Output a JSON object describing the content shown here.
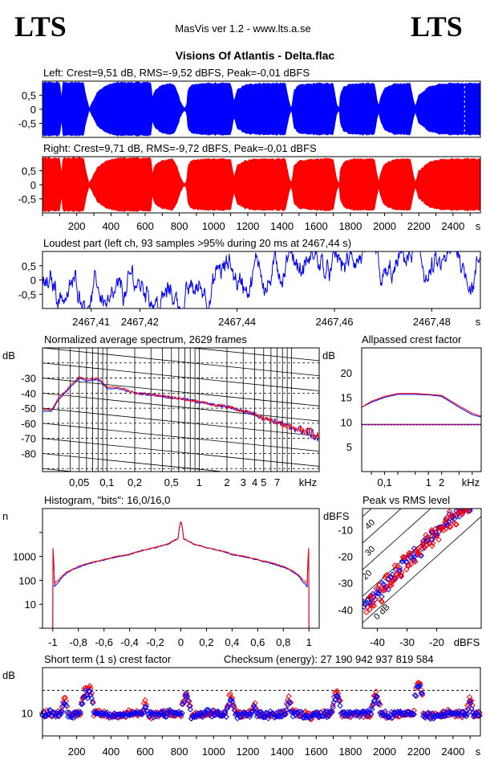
{
  "header": {
    "logo_left": "LTS",
    "logo_right": "LTS",
    "app_title": "MasVis ver 1.2 - www.lts.a.se",
    "file_title": "Visions Of Atlantis - Delta.flac"
  },
  "colors": {
    "left": "#0000ff",
    "right": "#ff0000",
    "axis": "#000000"
  },
  "chart_data": [
    {
      "id": "left-waveform",
      "type": "area",
      "title": "Left: Crest=9,51 dB, RMS=-9,52 dBFS, Peak=-0,01 dBFS",
      "ylim": [
        -1,
        1
      ],
      "yticks": [
        "0,5",
        "0",
        "-0,5"
      ],
      "xlim": [
        0,
        2560
      ],
      "envelope_x": [
        0,
        60,
        100,
        112,
        118,
        150,
        180,
        200,
        215,
        228,
        232,
        240,
        250,
        260,
        272,
        290,
        320,
        360,
        400,
        440,
        480,
        520,
        560,
        600,
        615,
        628,
        636,
        640,
        660,
        700,
        740,
        760,
        775,
        790,
        805,
        820,
        838,
        845,
        850,
        870,
        900,
        950,
        1000,
        1050,
        1100,
        1120,
        1140,
        1180,
        1220,
        1260,
        1300,
        1340,
        1380,
        1420,
        1440,
        1455,
        1465,
        1470,
        1500,
        1550,
        1600,
        1650,
        1700,
        1720,
        1735,
        1740,
        1760,
        1800,
        1850,
        1900,
        1940,
        1955,
        1965,
        1980,
        2000,
        2060,
        2120,
        2150,
        2170,
        2180,
        2200,
        2260,
        2320,
        2380,
        2420,
        2460,
        2500,
        2550,
        2560
      ],
      "envelope_y": [
        0.95,
        0.95,
        0.95,
        0.4,
        0.95,
        0.95,
        0.95,
        0.95,
        0.95,
        0.95,
        0.95,
        0.95,
        0.6,
        0.35,
        0.05,
        0.25,
        0.6,
        0.8,
        0.9,
        0.95,
        0.95,
        0.95,
        0.95,
        0.95,
        0.95,
        0.95,
        0.95,
        0.4,
        0.7,
        0.85,
        0.92,
        0.92,
        0.8,
        0.6,
        0.3,
        0.1,
        0.05,
        0.3,
        0.7,
        0.85,
        0.9,
        0.92,
        0.92,
        0.92,
        0.92,
        0.3,
        0.7,
        0.85,
        0.9,
        0.92,
        0.92,
        0.92,
        0.92,
        0.92,
        0.3,
        0.05,
        0.4,
        0.7,
        0.85,
        0.9,
        0.92,
        0.92,
        0.92,
        0.2,
        0.05,
        0.5,
        0.8,
        0.9,
        0.92,
        0.92,
        0.92,
        0.4,
        0.1,
        0.5,
        0.75,
        0.9,
        0.92,
        0.92,
        0.3,
        0.1,
        0.5,
        0.8,
        0.9,
        0.92,
        0.92,
        0.92,
        0.92,
        0.92,
        0.92
      ]
    },
    {
      "id": "right-waveform",
      "type": "area",
      "title": "Right: Crest=9,71 dB, RMS=-9,72 dBFS, Peak=-0,01 dBFS",
      "ylim": [
        -1,
        1
      ],
      "yticks": [
        "0,5",
        "0",
        "-0,5"
      ],
      "xlim": [
        0,
        2560
      ],
      "xticks": [
        "200",
        "400",
        "600",
        "800",
        "1000",
        "1200",
        "1400",
        "1600",
        "1800",
        "2000",
        "2200",
        "2400"
      ],
      "xtick_values": [
        200,
        400,
        600,
        800,
        1000,
        1200,
        1400,
        1600,
        1800,
        2000,
        2200,
        2400
      ],
      "xunit": "s"
    },
    {
      "id": "loudest-part",
      "type": "line",
      "title": "Loudest part (left  ch, 93 samples >95% during 20 ms at 2467,44 s)",
      "ylim": [
        -1,
        1
      ],
      "yticks": [
        "0,5",
        "0",
        "-0,5"
      ],
      "xlim": [
        2467.4,
        2467.49
      ],
      "xticks": [
        "2467,41",
        "2467,42",
        "2467,44",
        "2467,46",
        "2467,48"
      ],
      "xtick_values": [
        2467.41,
        2467.42,
        2467.44,
        2467.46,
        2467.48
      ],
      "xunit": "s"
    },
    {
      "id": "spectrum",
      "type": "line",
      "title": "Normalized average spectrum, 2629 frames",
      "ylabel": "dB",
      "yticks": [
        "-30",
        "-40",
        "-50",
        "-60",
        "-70",
        "-80"
      ],
      "ytick_values": [
        -30,
        -40,
        -50,
        -60,
        -70,
        -80
      ],
      "ylim": [
        -92,
        -10
      ],
      "xlim": [
        0.02,
        20
      ],
      "xscale": "log",
      "xticks": [
        "0,05",
        "0,1",
        "0,2",
        "0,5",
        "1",
        "2",
        "3",
        "4",
        "5",
        "7"
      ],
      "xtick_values": [
        0.05,
        0.1,
        0.2,
        0.5,
        1,
        2,
        3,
        4,
        5,
        7
      ],
      "xunit": "kHz",
      "series": [
        {
          "x": [
            0.02,
            0.025,
            0.03,
            0.04,
            0.05,
            0.06,
            0.08,
            0.1,
            0.13,
            0.2,
            0.3,
            0.5,
            0.7,
            1,
            1.5,
            2,
            3,
            4,
            5,
            6,
            7,
            8,
            10,
            12,
            15,
            18,
            20
          ],
          "y": [
            -52,
            -52,
            -44,
            -36,
            -30,
            -32,
            -31,
            -37,
            -37,
            -40,
            -41,
            -43,
            -44,
            -46,
            -48,
            -49,
            -52,
            -54,
            -57,
            -58,
            -59,
            -61,
            -63,
            -64,
            -66,
            -68,
            -71
          ]
        },
        {
          "x": [
            0.02,
            0.025,
            0.03,
            0.04,
            0.05,
            0.06,
            0.08,
            0.1,
            0.13,
            0.2,
            0.3,
            0.5,
            0.7,
            1,
            1.5,
            2,
            3,
            4,
            5,
            6,
            7,
            8,
            10,
            12,
            15,
            18,
            20
          ],
          "y": [
            -51,
            -51,
            -43,
            -35,
            -29,
            -31,
            -30,
            -36,
            -36,
            -40,
            -41,
            -43,
            -44,
            -46,
            -48,
            -49,
            -52,
            -54,
            -57,
            -58,
            -59,
            -61,
            -63,
            -64,
            -65,
            -68,
            -70
          ]
        }
      ]
    },
    {
      "id": "allpassed-crest",
      "type": "line",
      "title": "Allpassed crest factor",
      "ylabel": "dB",
      "yticks": [
        "20",
        "15",
        "10",
        "5"
      ],
      "ytick_values": [
        20,
        15,
        10,
        5
      ],
      "ylim": [
        0,
        25
      ],
      "xlim": [
        0.03,
        16
      ],
      "xscale": "log",
      "xticks": [
        "0,1",
        "1",
        "2"
      ],
      "xtick_values": [
        0.1,
        1,
        2
      ],
      "xunit": "kHz",
      "reference_db": 9.5,
      "series": [
        {
          "x": [
            0.03,
            0.05,
            0.1,
            0.2,
            0.5,
            1,
            2,
            5,
            10,
            16
          ],
          "y": [
            13,
            14,
            15,
            15.6,
            15.6,
            15.5,
            15.2,
            13,
            11.5,
            11
          ]
        },
        {
          "x": [
            0.03,
            0.05,
            0.1,
            0.2,
            0.5,
            1,
            2,
            5,
            10,
            16
          ],
          "y": [
            13,
            14.2,
            15.2,
            15.8,
            15.8,
            15.6,
            15.4,
            13.3,
            11.8,
            11.2
          ]
        }
      ]
    },
    {
      "id": "histogram",
      "type": "line",
      "title": "Histogram, \"bits\": 16,0/16,0",
      "ylabel": "n",
      "yscale": "log",
      "yticks": [
        "1000",
        "100",
        "10"
      ],
      "ytick_values": [
        1000,
        100,
        10
      ],
      "ylim": [
        1,
        100000
      ],
      "xlim": [
        -1.08,
        1.08
      ],
      "xticks": [
        "-1",
        "-0,8",
        "-0,6",
        "-0,4",
        "-0,2",
        "0",
        "0,2",
        "0,4",
        "0,6",
        "0,8",
        "1"
      ],
      "xtick_values": [
        -1,
        -0.8,
        -0.6,
        -0.4,
        -0.2,
        0,
        0.2,
        0.4,
        0.6,
        0.8,
        1
      ],
      "series": [
        {
          "x": [
            -1,
            -0.99,
            -0.95,
            -0.9,
            -0.8,
            -0.6,
            -0.4,
            -0.2,
            -0.1,
            -0.02,
            0,
            0.02,
            0.1,
            0.2,
            0.4,
            0.6,
            0.8,
            0.9,
            0.95,
            0.99,
            1
          ],
          "y": [
            2500,
            50,
            90,
            180,
            350,
            700,
            1200,
            2300,
            3200,
            5500,
            30000,
            5500,
            3200,
            2300,
            1200,
            700,
            350,
            180,
            90,
            50,
            2500
          ]
        },
        {
          "x": [
            -1,
            -0.99,
            -0.95,
            -0.9,
            -0.8,
            -0.6,
            -0.4,
            -0.2,
            -0.1,
            -0.02,
            0,
            0.02,
            0.1,
            0.2,
            0.4,
            0.6,
            0.8,
            0.9,
            0.95,
            0.99,
            1
          ],
          "y": [
            2500,
            70,
            110,
            200,
            380,
            730,
            1250,
            2350,
            3300,
            5600,
            30000,
            5600,
            3300,
            2350,
            1250,
            730,
            380,
            200,
            110,
            70,
            2500
          ]
        }
      ]
    },
    {
      "id": "peak-vs-rms",
      "type": "scatter",
      "title": "Peak vs RMS level",
      "ylabel": "dBFS",
      "xlabel": "dBFS",
      "yticks": [
        "-10",
        "-20",
        "-30",
        "-40"
      ],
      "ytick_values": [
        -10,
        -20,
        -30,
        -40
      ],
      "xticks": [
        "-40",
        "-30",
        "-20"
      ],
      "xtick_values": [
        -40,
        -30,
        -20
      ],
      "xlim": [
        -45,
        -5
      ],
      "ylim": [
        -47,
        -2
      ],
      "diagonal_labels": [
        "40",
        "30",
        "20",
        "10",
        "0 dB"
      ],
      "diagonal_values": [
        40,
        30,
        20,
        10,
        0
      ],
      "series": [
        {
          "x": [
            -44,
            -43,
            -42,
            -41,
            -40,
            -39,
            -38,
            -37,
            -36,
            -35,
            -34,
            -33,
            -32,
            -31,
            -30,
            -29,
            -28,
            -27,
            -26,
            -25,
            -24,
            -23,
            -22,
            -21,
            -20,
            -19,
            -18,
            -17,
            -16,
            -15,
            -14,
            -13,
            -12,
            -11,
            -10,
            -9
          ],
          "y": [
            -38,
            -36,
            -37,
            -35,
            -33,
            -34,
            -30,
            -32,
            -29,
            -27,
            -28,
            -25,
            -26,
            -22,
            -23,
            -20,
            -21,
            -18,
            -19,
            -16,
            -15,
            -13,
            -14,
            -11,
            -12,
            -10,
            -9,
            -7,
            -8,
            -5,
            -6,
            -4,
            -3,
            -2,
            -2,
            -2
          ]
        },
        {
          "x": [
            -43,
            -42,
            -41,
            -40,
            -39,
            -38,
            -37,
            -36,
            -35,
            -34,
            -33,
            -32,
            -31,
            -30,
            -29,
            -28,
            -27,
            -26,
            -25,
            -24,
            -23,
            -22,
            -21,
            -20,
            -19,
            -18,
            -17,
            -16,
            -15,
            -14,
            -13,
            -12,
            -11,
            -10
          ],
          "y": [
            -40,
            -35,
            -38,
            -31,
            -36,
            -33,
            -28,
            -31,
            -30,
            -24,
            -27,
            -27,
            -21,
            -24,
            -19,
            -22,
            -17,
            -20,
            -15,
            -17,
            -12,
            -15,
            -10,
            -13,
            -9,
            -10,
            -6,
            -9,
            -4,
            -7,
            -3,
            -4,
            -2,
            -2
          ]
        }
      ]
    },
    {
      "id": "short-term-crest",
      "type": "scatter",
      "title": "Short term (1 s) crest factor",
      "annotation": "Checksum (energy):  27 190 942 937 819 584",
      "ylabel": "dB",
      "yticks": [
        "10"
      ],
      "ytick_values": [
        10
      ],
      "ylim": [
        0,
        30
      ],
      "xlim": [
        0,
        2560
      ],
      "reference_db": 20,
      "xticks": [
        "200",
        "400",
        "600",
        "800",
        "1000",
        "1200",
        "1400",
        "1600",
        "1800",
        "2000",
        "2200",
        "2400"
      ],
      "xtick_values": [
        200,
        400,
        600,
        800,
        1000,
        1200,
        1400,
        1600,
        1800,
        2000,
        2200,
        2400
      ],
      "xunit": "s",
      "spikes_x": [
        130,
        250,
        275,
        600,
        840,
        1100,
        1240,
        1440,
        1720,
        1950,
        2200,
        2500
      ],
      "spikes_y": [
        17,
        21,
        22,
        15,
        20,
        19,
        15,
        17,
        21,
        20,
        25,
        17
      ]
    }
  ]
}
